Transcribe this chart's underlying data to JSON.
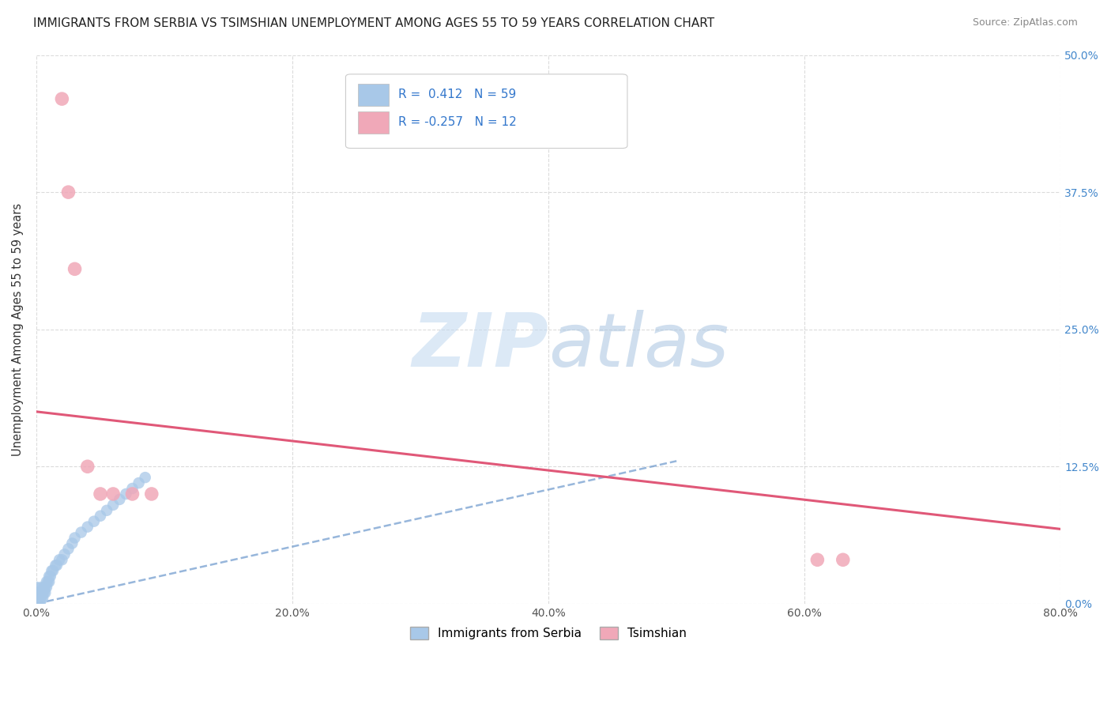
{
  "title": "IMMIGRANTS FROM SERBIA VS TSIMSHIAN UNEMPLOYMENT AMONG AGES 55 TO 59 YEARS CORRELATION CHART",
  "source": "Source: ZipAtlas.com",
  "ylabel": "Unemployment Among Ages 55 to 59 years",
  "xlim": [
    0,
    0.8
  ],
  "ylim": [
    0,
    0.5
  ],
  "xtick_labels": [
    "0.0%",
    "20.0%",
    "40.0%",
    "60.0%",
    "80.0%"
  ],
  "ytick_labels": [
    "0.0%",
    "12.5%",
    "25.0%",
    "37.5%",
    "50.0%"
  ],
  "legend_label1": "Immigrants from Serbia",
  "legend_label2": "Tsimshian",
  "blue_color": "#a8c8e8",
  "pink_color": "#f0a8b8",
  "trend_blue_color": "#6090c8",
  "trend_pink_color": "#e05878",
  "watermark_zip": "ZIP",
  "watermark_atlas": "atlas",
  "serbia_x": [
    0.0,
    0.0,
    0.0,
    0.0,
    0.0,
    0.0,
    0.0,
    0.0,
    0.0,
    0.0,
    0.0,
    0.0,
    0.0,
    0.001,
    0.001,
    0.001,
    0.001,
    0.002,
    0.002,
    0.002,
    0.003,
    0.003,
    0.003,
    0.004,
    0.004,
    0.004,
    0.005,
    0.005,
    0.006,
    0.006,
    0.007,
    0.007,
    0.008,
    0.008,
    0.009,
    0.01,
    0.01,
    0.011,
    0.012,
    0.013,
    0.015,
    0.016,
    0.018,
    0.02,
    0.022,
    0.025,
    0.028,
    0.03,
    0.035,
    0.04,
    0.045,
    0.05,
    0.055,
    0.06,
    0.065,
    0.07,
    0.075,
    0.08,
    0.085
  ],
  "serbia_y": [
    0.0,
    0.0,
    0.0,
    0.0,
    0.0,
    0.0,
    0.005,
    0.005,
    0.005,
    0.01,
    0.01,
    0.01,
    0.015,
    0.0,
    0.0,
    0.005,
    0.01,
    0.0,
    0.005,
    0.01,
    0.0,
    0.005,
    0.01,
    0.005,
    0.01,
    0.015,
    0.005,
    0.01,
    0.01,
    0.015,
    0.01,
    0.015,
    0.015,
    0.02,
    0.02,
    0.02,
    0.025,
    0.025,
    0.03,
    0.03,
    0.035,
    0.035,
    0.04,
    0.04,
    0.045,
    0.05,
    0.055,
    0.06,
    0.065,
    0.07,
    0.075,
    0.08,
    0.085,
    0.09,
    0.095,
    0.1,
    0.105,
    0.11,
    0.115
  ],
  "tsimshian_x": [
    0.02,
    0.025,
    0.03,
    0.04,
    0.05,
    0.06,
    0.075,
    0.09,
    0.61,
    0.63
  ],
  "tsimshian_y": [
    0.46,
    0.375,
    0.305,
    0.125,
    0.1,
    0.1,
    0.1,
    0.1,
    0.04,
    0.04
  ],
  "blue_trendline_x": [
    0.0,
    0.5
  ],
  "blue_trendline_y": [
    0.0,
    0.13
  ],
  "pink_trendline_x": [
    0.0,
    0.8
  ],
  "pink_trendline_y": [
    0.175,
    0.068
  ]
}
